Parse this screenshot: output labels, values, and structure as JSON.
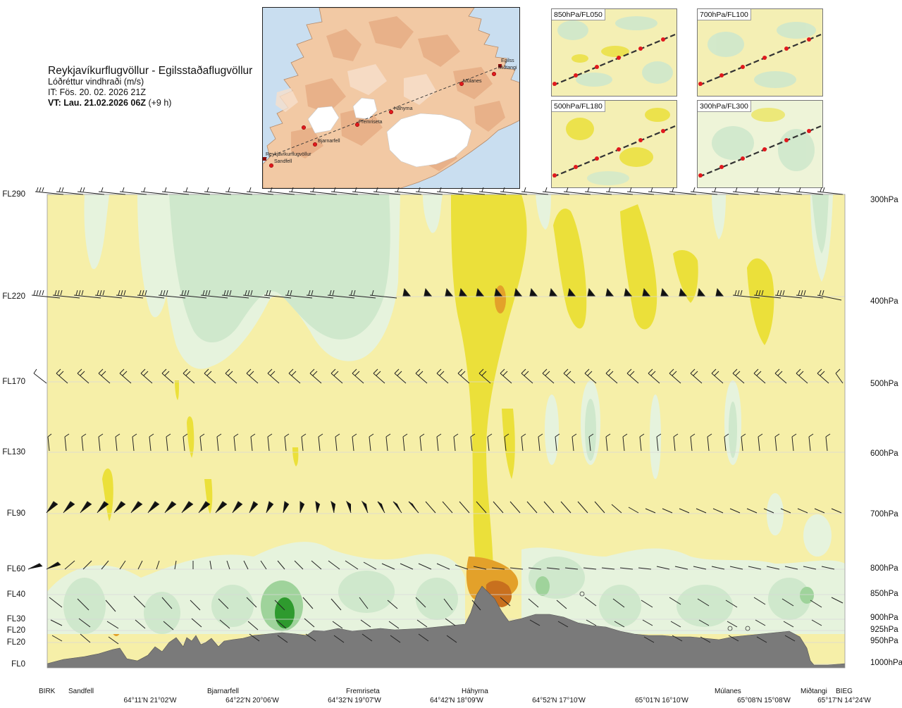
{
  "title": {
    "route": "Reykjavíkurflugvöllur - Egilsstaðaflugvöllur",
    "subtitle": "Lóðréttur vindhraði (m/s)",
    "issue_time": "IT: Fös. 20. 02. 2026 21Z",
    "valid_time_bold": "VT: Lau. 21.02.2026 06Z",
    "valid_time_offset": "(+9 h)"
  },
  "overview_map": {
    "places": [
      "Reykjavíkurflugvöllur",
      "Sandfell",
      "Bjarnarfell",
      "Fremriseta",
      "Háhyrna",
      "Múlanes",
      "Miðtangi",
      "Egilss"
    ]
  },
  "mini_maps": [
    {
      "label": "850hPa/FL050"
    },
    {
      "label": "700hPa/FL100"
    },
    {
      "label": "500hPa/FL180"
    },
    {
      "label": "300hPa/FL300"
    }
  ],
  "flight_levels": [
    "FL290",
    "FL220",
    "FL170",
    "FL130",
    "FL90",
    "FL60",
    "FL40",
    "FL30",
    "FL20",
    "FL20",
    "FL0"
  ],
  "pressure_levels": [
    "300hPa",
    "400hPa",
    "500hPa",
    "600hPa",
    "700hPa",
    "800hPa",
    "850hPa",
    "900hPa",
    "925hPa",
    "950hPa",
    "1000hPa"
  ],
  "waypoints": [
    "BIRK",
    "Sandfell",
    "Bjarnarfell",
    "Fremriseta",
    "Háhyrna",
    "Múlanes",
    "Miðtangi",
    "BIEG"
  ],
  "coordinates": [
    "64°11'N 21°02'W",
    "64°22'N 20°06'W",
    "64°32'N 19°07'W",
    "64°42'N 18°09'W",
    "64°52'N 17°10'W",
    "65°01'N 16°10'W",
    "65°08'N 15°08'W",
    "65°17'N 14°24'W"
  ],
  "colors": {
    "light_yellow": "#f6efa8",
    "yellow": "#ebe03a",
    "orange": "#e3a12a",
    "dark_orange": "#c8701e",
    "pale_green": "#e6f3dd",
    "light_green": "#cfe8cc",
    "green": "#9fd39b",
    "dark_green": "#2e9a2e",
    "terrain": "#7a7a7a",
    "land": "#f2c9a4",
    "sea": "#c9def0",
    "route_marker": "#e0191d"
  }
}
